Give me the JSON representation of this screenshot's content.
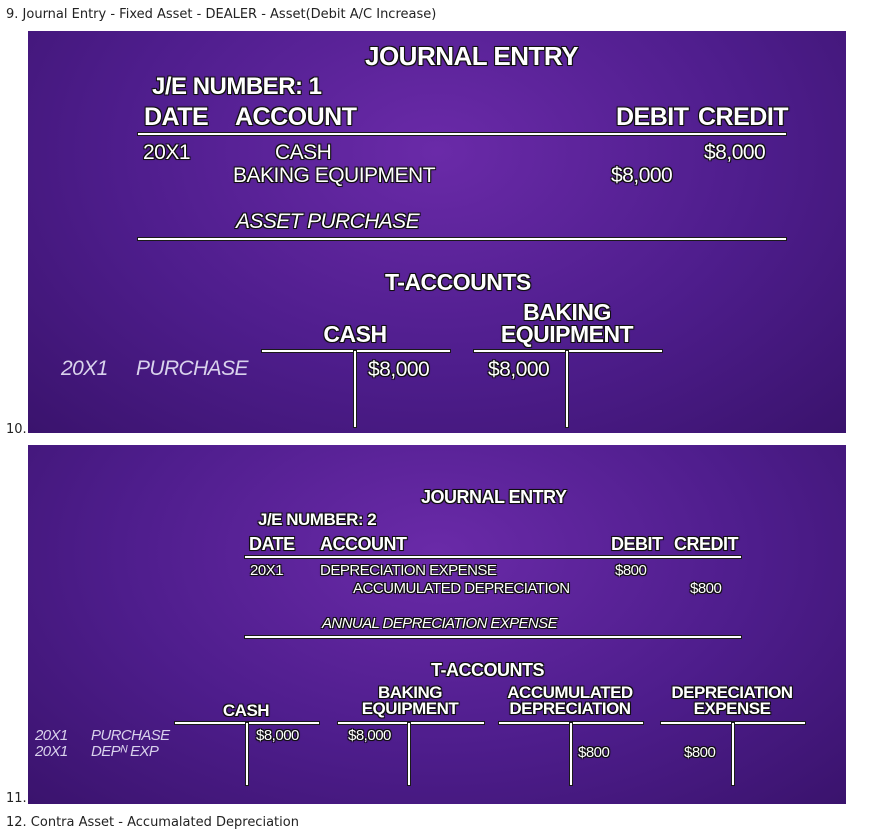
{
  "captions": {
    "c9": "9. Journal Entry - Fixed Asset - DEALER - Asset(Debit A/C Increase)",
    "c10": "10.",
    "c11": "11.",
    "c12": "12. Contra Asset - Accumalated Depreciation"
  },
  "panel1": {
    "title": "JOURNAL ENTRY",
    "je_number": "J/E NUMBER: 1",
    "headers": {
      "date": "DATE",
      "account": "ACCOUNT",
      "debit": "DEBIT",
      "credit": "CREDIT"
    },
    "date": "20X1",
    "row1_account": "CASH",
    "row1_credit": "$8,000",
    "row2_account": "BAKING EQUIPMENT",
    "row2_debit": "$8,000",
    "memo": "ASSET PURCHASE",
    "t_title": "T-ACCOUNTS",
    "t_side_date": "20X1",
    "t_side_desc": "PURCHASE",
    "t_cash_label": "CASH",
    "t_cash_credit": "$8,000",
    "t_equip_label_1": "BAKING",
    "t_equip_label_2": "EQUIPMENT",
    "t_equip_debit": "$8,000"
  },
  "panel2": {
    "title": "JOURNAL ENTRY",
    "je_number": "J/E NUMBER: 2",
    "headers": {
      "date": "DATE",
      "account": "ACCOUNT",
      "debit": "DEBIT",
      "credit": "CREDIT"
    },
    "date": "20X1",
    "row1_account": "DEPRECIATION EXPENSE",
    "row1_debit": "$800",
    "row2_account": "ACCUMULATED DEPRECIATION",
    "row2_credit": "$800",
    "memo": "ANNUAL DEPRECIATION EXPENSE",
    "t_title": "T-ACCOUNTS",
    "side_date_1": "20X1",
    "side_desc_1": "PURCHASE",
    "side_date_2": "20X1",
    "side_desc_2": "DEPᴺ EXP",
    "t_cash_label": "CASH",
    "t_cash_credit": "$8,000",
    "t_equip_label_1": "BAKING",
    "t_equip_label_2": "EQUIPMENT",
    "t_equip_debit": "$8,000",
    "t_accum_label_1": "ACCUMULATED",
    "t_accum_label_2": "DEPRECIATION",
    "t_accum_credit": "$800",
    "t_depexp_label_1": "DEPRECIATION",
    "t_depexp_label_2": "EXPENSE",
    "t_depexp_debit": "$800"
  }
}
